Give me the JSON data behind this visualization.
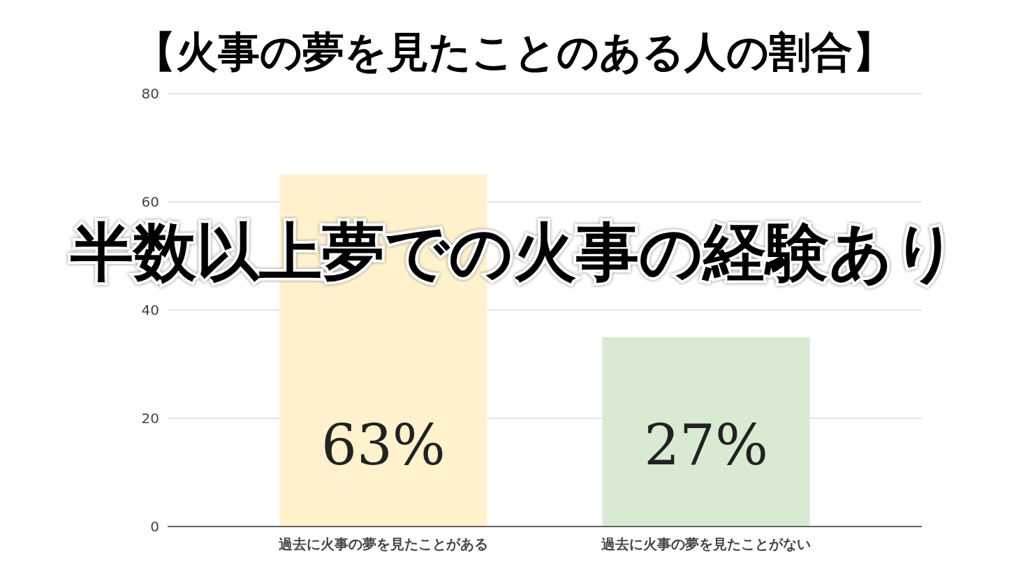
{
  "chart_data": {
    "type": "bar",
    "title": "【火事の夢を見たことのある人の割合】",
    "categories": [
      "過去に火事の夢を見たことがある",
      "過去に火事の夢を見たことがない"
    ],
    "values": [
      65,
      35
    ],
    "colors": [
      "#fff2cc",
      "#d9ead3"
    ],
    "ylim": [
      0,
      80
    ],
    "yticks": [
      0,
      20,
      40,
      60,
      80
    ],
    "grid": "y",
    "annotations": [
      "半数以上夢での火事の経験あり",
      "63%",
      "27%"
    ]
  }
}
